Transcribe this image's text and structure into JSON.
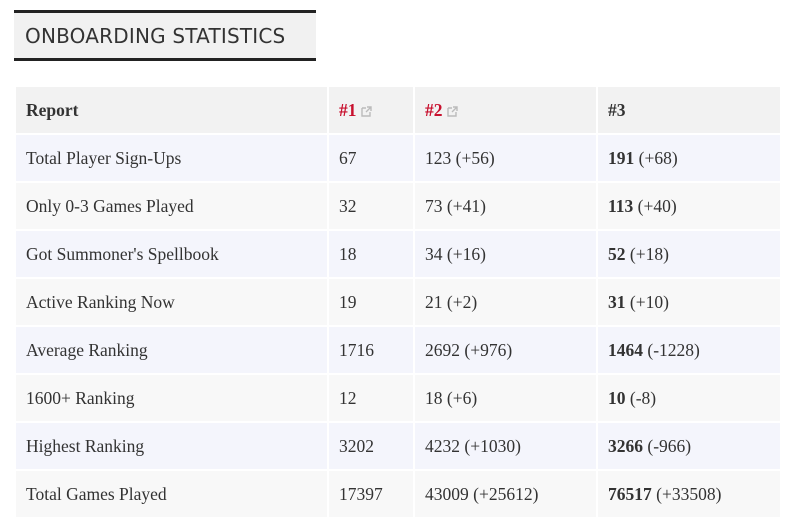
{
  "header": {
    "title": "ONBOARDING STATISTICS"
  },
  "table": {
    "columns": [
      "Report",
      "#1",
      "#2",
      "#3"
    ],
    "rows": [
      [
        "Total Player Sign-Ups",
        "67",
        "123 (+56)",
        [
          "191",
          "(+68)"
        ]
      ],
      [
        "Only 0-3 Games Played",
        "32",
        "73 (+41)",
        [
          "113",
          "(+40)"
        ]
      ],
      [
        "Got Summoner's Spellbook",
        "18",
        "34 (+16)",
        [
          "52",
          "(+18)"
        ]
      ],
      [
        "Active Ranking Now",
        "19",
        "21 (+2)",
        [
          "31",
          "(+10)"
        ]
      ],
      [
        "Average Ranking",
        "1716",
        "2692 (+976)",
        [
          "1464",
          "(-1228)"
        ]
      ],
      [
        "1600+ Ranking",
        "12",
        "18 (+6)",
        [
          "10",
          "(-8)"
        ]
      ],
      [
        "Highest Ranking",
        "3202",
        "4232 (+1030)",
        [
          "3266",
          "(-966)"
        ]
      ],
      [
        "Total Games Played",
        "17397",
        "43009 (+25612)",
        [
          "76517",
          "(+33508)"
        ]
      ]
    ]
  }
}
